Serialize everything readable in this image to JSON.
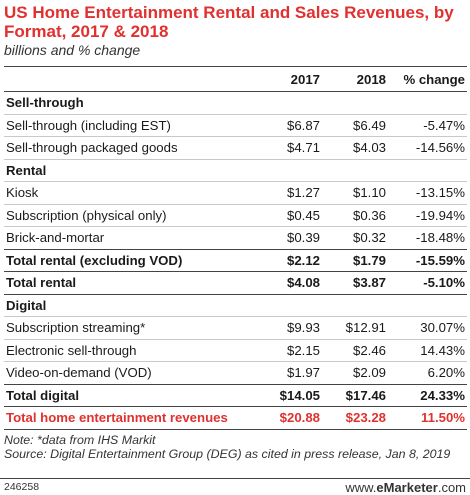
{
  "chart_data": {
    "type": "table",
    "title": "US Home Entertainment Rental and Sales Revenues, by Format, 2017 & 2018",
    "subtitle": "billions and % change",
    "columns": [
      "",
      "2017",
      "2018",
      "% change"
    ],
    "sections": [
      {
        "name": "Sell-through",
        "rows": [
          {
            "label": "Sell-through (including EST)",
            "v2017": "$6.87",
            "v2018": "$6.49",
            "change": "-5.47%"
          },
          {
            "label": "Sell-through packaged goods",
            "v2017": "$4.71",
            "v2018": "$4.03",
            "change": "-14.56%"
          }
        ]
      },
      {
        "name": "Rental",
        "rows": [
          {
            "label": "Kiosk",
            "v2017": "$1.27",
            "v2018": "$1.10",
            "change": "-13.15%"
          },
          {
            "label": "Subscription (physical only)",
            "v2017": "$0.45",
            "v2018": "$0.36",
            "change": "-19.94%"
          },
          {
            "label": "Brick-and-mortar",
            "v2017": "$0.39",
            "v2018": "$0.32",
            "change": "-18.48%"
          },
          {
            "label": "Total rental (excluding VOD)",
            "v2017": "$2.12",
            "v2018": "$1.79",
            "change": "-15.59%",
            "bold": true
          },
          {
            "label": "Total rental",
            "v2017": "$4.08",
            "v2018": "$3.87",
            "change": "-5.10%",
            "bold": true
          }
        ]
      },
      {
        "name": "Digital",
        "rows": [
          {
            "label": "Subscription streaming*",
            "v2017": "$9.93",
            "v2018": "$12.91",
            "change": "30.07%"
          },
          {
            "label": "Electronic sell-through",
            "v2017": "$2.15",
            "v2018": "$2.46",
            "change": "14.43%"
          },
          {
            "label": "Video-on-demand (VOD)",
            "v2017": "$1.97",
            "v2018": "$2.09",
            "change": "6.20%"
          },
          {
            "label": "Total digital",
            "v2017": "$14.05",
            "v2018": "$17.46",
            "change": "24.33%",
            "bold": true
          }
        ]
      }
    ],
    "grand_total": {
      "label": "Total home entertainment revenues",
      "v2017": "$20.88",
      "v2018": "$23.28",
      "change": "11.50%"
    },
    "notes": [
      "Note: *data from IHS Markit",
      "Source: Digital Entertainment Group (DEG) as cited in press release, Jan 8, 2019"
    ]
  },
  "footer": {
    "id": "246258",
    "brand_prefix": "www.",
    "brand_bold": "eMarketer",
    "brand_suffix": ".com"
  },
  "colors": {
    "title": "#e0312f",
    "grand_total": "#e0312f",
    "rule": "#444444",
    "grid": "#c9c9c9"
  }
}
